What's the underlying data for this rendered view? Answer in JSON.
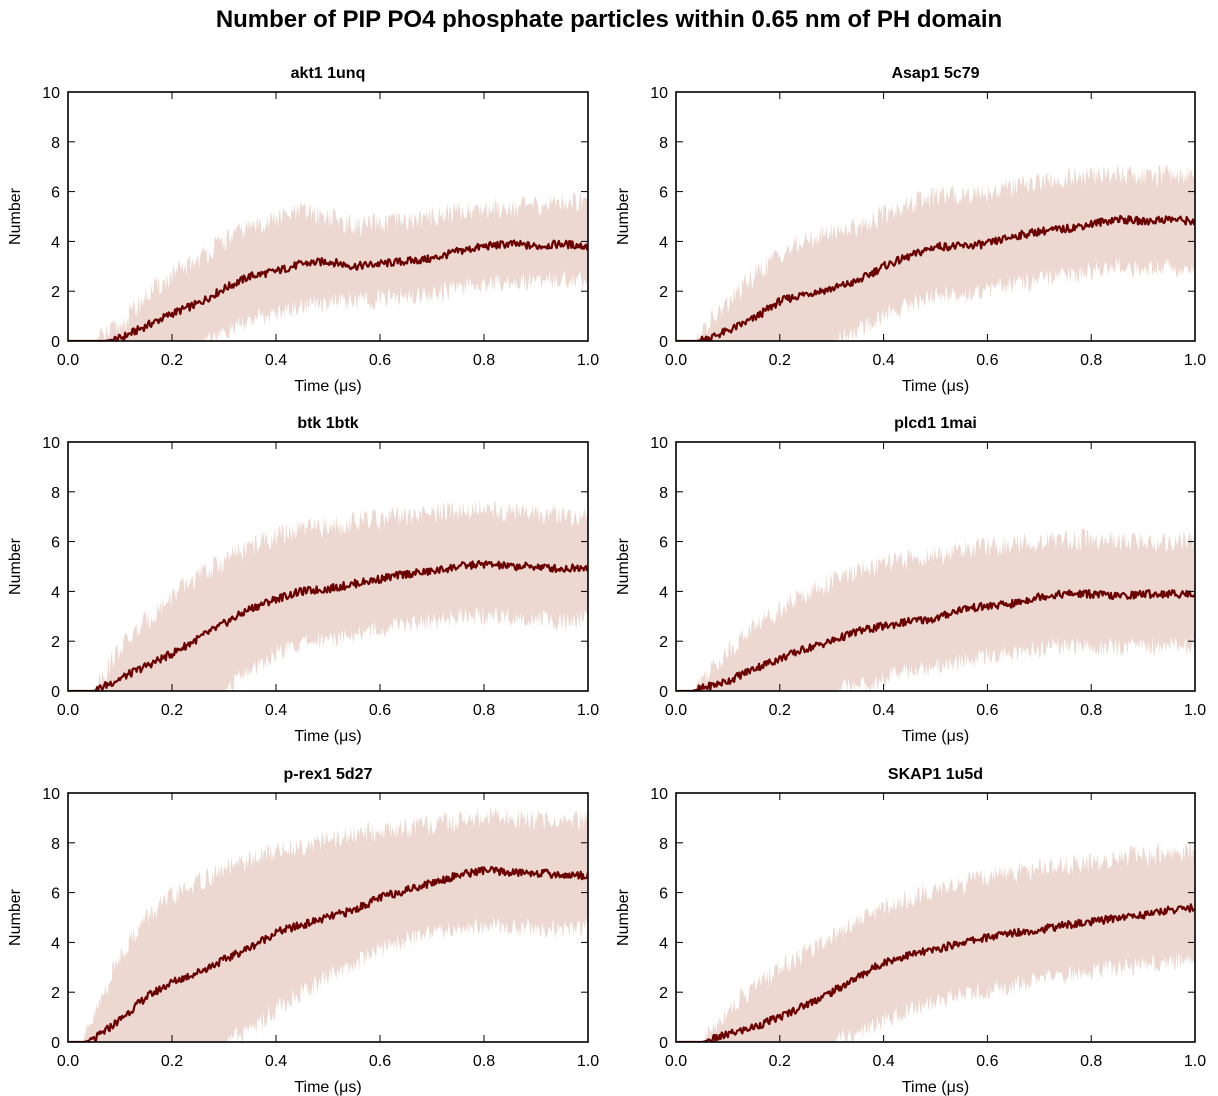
{
  "figure": {
    "title": "Number of PIP PO4 phosphate particles within 0.65 nm of PH domain",
    "colors": {
      "mean_line": "#6b0000",
      "band": "#ecd8d0",
      "axes": "#000000"
    }
  },
  "chart_data": [
    {
      "type": "line",
      "title": "akt1 1unq",
      "xlabel": "Time (μs)",
      "ylabel": "Number",
      "xlim": [
        0.0,
        1.0
      ],
      "ylim": [
        0,
        10
      ],
      "xticks": [
        "0.0",
        "0.2",
        "0.4",
        "0.6",
        "0.8",
        "1.0"
      ],
      "yticks": [
        "0",
        "2",
        "4",
        "6",
        "8",
        "10"
      ],
      "x": [
        0.0,
        0.05,
        0.07,
        0.1,
        0.15,
        0.2,
        0.25,
        0.3,
        0.35,
        0.4,
        0.45,
        0.5,
        0.55,
        0.6,
        0.65,
        0.7,
        0.75,
        0.8,
        0.85,
        0.9,
        0.95,
        1.0
      ],
      "series": [
        {
          "role": "mean",
          "values": [
            0,
            0,
            0,
            0.1,
            0.6,
            1.1,
            1.5,
            2.1,
            2.6,
            2.8,
            3.1,
            3.2,
            3.0,
            3.1,
            3.2,
            3.3,
            3.6,
            3.8,
            3.9,
            3.8,
            3.9,
            3.8
          ]
        },
        {
          "role": "upper",
          "values": [
            0,
            0,
            0.2,
            0.6,
            1.8,
            2.6,
            3.3,
            4.0,
            4.6,
            4.9,
            5.2,
            5.0,
            4.6,
            4.7,
            4.8,
            5.0,
            5.2,
            5.3,
            5.4,
            5.4,
            5.6,
            5.7
          ]
        },
        {
          "role": "lower",
          "values": [
            0,
            0,
            0,
            0,
            0,
            0,
            0,
            0.3,
            0.8,
            1.1,
            1.4,
            1.6,
            1.6,
            1.7,
            1.8,
            1.9,
            2.1,
            2.3,
            2.4,
            2.4,
            2.5,
            2.4
          ]
        }
      ]
    },
    {
      "type": "line",
      "title": "Asap1 5c79",
      "xlabel": "Time (μs)",
      "ylabel": "Number",
      "xlim": [
        0.0,
        1.0
      ],
      "ylim": [
        0,
        10
      ],
      "xticks": [
        "0.0",
        "0.2",
        "0.4",
        "0.6",
        "0.8",
        "1.0"
      ],
      "yticks": [
        "0",
        "2",
        "4",
        "6",
        "8",
        "10"
      ],
      "x": [
        0.0,
        0.04,
        0.06,
        0.1,
        0.15,
        0.2,
        0.25,
        0.3,
        0.35,
        0.4,
        0.45,
        0.5,
        0.55,
        0.6,
        0.65,
        0.7,
        0.75,
        0.8,
        0.85,
        0.9,
        0.95,
        1.0
      ],
      "series": [
        {
          "role": "mean",
          "values": [
            0,
            0,
            0.1,
            0.4,
            0.9,
            1.6,
            1.9,
            2.1,
            2.4,
            3.0,
            3.4,
            3.8,
            3.8,
            3.9,
            4.2,
            4.4,
            4.5,
            4.7,
            4.9,
            4.8,
            4.9,
            4.8
          ]
        },
        {
          "role": "upper",
          "values": [
            0,
            0,
            0.6,
            1.5,
            2.6,
            3.5,
            4.0,
            4.4,
            4.6,
            5.1,
            5.5,
            5.8,
            5.9,
            6.0,
            6.2,
            6.4,
            6.5,
            6.6,
            6.7,
            6.6,
            6.7,
            6.7
          ]
        },
        {
          "role": "lower",
          "values": [
            0,
            0,
            0,
            0,
            0,
            0,
            0,
            0,
            0.4,
            1.0,
            1.5,
            1.8,
            1.9,
            2.0,
            2.3,
            2.4,
            2.6,
            2.8,
            3.0,
            2.9,
            3.0,
            2.9
          ]
        }
      ]
    },
    {
      "type": "line",
      "title": "btk 1btk",
      "xlabel": "Time (μs)",
      "ylabel": "Number",
      "xlim": [
        0.0,
        1.0
      ],
      "ylim": [
        0,
        10
      ],
      "xticks": [
        "0.0",
        "0.2",
        "0.4",
        "0.6",
        "0.8",
        "1.0"
      ],
      "yticks": [
        "0",
        "2",
        "4",
        "6",
        "8",
        "10"
      ],
      "x": [
        0.0,
        0.05,
        0.06,
        0.1,
        0.15,
        0.2,
        0.25,
        0.3,
        0.35,
        0.4,
        0.45,
        0.5,
        0.55,
        0.6,
        0.65,
        0.7,
        0.75,
        0.8,
        0.85,
        0.9,
        0.95,
        1.0
      ],
      "series": [
        {
          "role": "mean",
          "values": [
            0,
            0,
            0.1,
            0.5,
            1.0,
            1.5,
            2.1,
            2.7,
            3.3,
            3.7,
            4.0,
            4.1,
            4.3,
            4.5,
            4.7,
            4.8,
            5.0,
            5.1,
            5.0,
            5.0,
            4.9,
            5.0
          ]
        },
        {
          "role": "upper",
          "values": [
            0,
            0,
            0.4,
            1.7,
            2.8,
            3.8,
            4.6,
            5.2,
            5.8,
            6.2,
            6.5,
            6.6,
            6.8,
            6.9,
            7.0,
            7.1,
            7.3,
            7.3,
            7.2,
            7.1,
            7.0,
            7.0
          ]
        },
        {
          "role": "lower",
          "values": [
            0,
            0,
            0,
            0,
            0,
            0,
            0,
            0,
            0.8,
            1.5,
            1.9,
            2.1,
            2.3,
            2.5,
            2.7,
            2.8,
            3.0,
            3.0,
            3.0,
            2.9,
            2.8,
            2.9
          ]
        }
      ]
    },
    {
      "type": "line",
      "title": "plcd1 1mai",
      "xlabel": "Time (μs)",
      "ylabel": "Number",
      "xlim": [
        0.0,
        1.0
      ],
      "ylim": [
        0,
        10
      ],
      "xticks": [
        "0.0",
        "0.2",
        "0.4",
        "0.6",
        "0.8",
        "1.0"
      ],
      "yticks": [
        "0",
        "2",
        "4",
        "6",
        "8",
        "10"
      ],
      "x": [
        0.0,
        0.03,
        0.05,
        0.1,
        0.15,
        0.2,
        0.25,
        0.3,
        0.35,
        0.4,
        0.45,
        0.5,
        0.55,
        0.6,
        0.65,
        0.7,
        0.75,
        0.8,
        0.85,
        0.9,
        0.95,
        1.0
      ],
      "series": [
        {
          "role": "mean",
          "values": [
            0,
            0,
            0.1,
            0.4,
            0.9,
            1.3,
            1.7,
            2.0,
            2.4,
            2.6,
            2.8,
            2.9,
            3.3,
            3.4,
            3.5,
            3.8,
            3.9,
            3.9,
            3.8,
            3.9,
            3.9,
            3.9
          ]
        },
        {
          "role": "upper",
          "values": [
            0,
            0,
            0.5,
            1.6,
            2.6,
            3.3,
            3.9,
            4.4,
            4.8,
            5.1,
            5.3,
            5.4,
            5.7,
            5.8,
            5.9,
            6.0,
            6.1,
            6.1,
            6.0,
            6.0,
            6.0,
            6.0
          ]
        },
        {
          "role": "lower",
          "values": [
            0,
            0,
            0,
            0,
            0,
            0,
            0,
            0,
            0.2,
            0.5,
            0.8,
            1.0,
            1.2,
            1.4,
            1.5,
            1.7,
            1.8,
            1.8,
            1.7,
            1.8,
            1.8,
            1.8
          ]
        }
      ]
    },
    {
      "type": "line",
      "title": "p-rex1 5d27",
      "xlabel": "Time (μs)",
      "ylabel": "Number",
      "xlim": [
        0.0,
        1.0
      ],
      "ylim": [
        0,
        10
      ],
      "xticks": [
        "0.0",
        "0.2",
        "0.4",
        "0.6",
        "0.8",
        "1.0"
      ],
      "yticks": [
        "0",
        "2",
        "4",
        "6",
        "8",
        "10"
      ],
      "x": [
        0.0,
        0.03,
        0.05,
        0.1,
        0.15,
        0.2,
        0.25,
        0.3,
        0.35,
        0.4,
        0.45,
        0.5,
        0.55,
        0.6,
        0.65,
        0.7,
        0.75,
        0.8,
        0.85,
        0.9,
        0.95,
        1.0
      ],
      "series": [
        {
          "role": "mean",
          "values": [
            0,
            0,
            0.1,
            0.9,
            1.8,
            2.4,
            2.8,
            3.3,
            3.8,
            4.4,
            4.7,
            5.0,
            5.3,
            5.8,
            6.1,
            6.4,
            6.7,
            6.9,
            6.8,
            6.8,
            6.7,
            6.7
          ]
        },
        {
          "role": "upper",
          "values": [
            0,
            0,
            1.0,
            3.5,
            5.0,
            5.8,
            6.4,
            6.9,
            7.3,
            7.7,
            7.9,
            8.1,
            8.3,
            8.5,
            8.6,
            8.7,
            8.9,
            9.0,
            9.0,
            8.9,
            8.9,
            8.9
          ]
        },
        {
          "role": "lower",
          "values": [
            0,
            0,
            0,
            0,
            0,
            0,
            0,
            0,
            0.5,
            1.3,
            2.0,
            2.6,
            3.1,
            3.7,
            4.1,
            4.4,
            4.6,
            4.7,
            4.6,
            4.6,
            4.5,
            4.6
          ]
        }
      ]
    },
    {
      "type": "line",
      "title": "SKAP1 1u5d",
      "xlabel": "Time (μs)",
      "ylabel": "Number",
      "xlim": [
        0.0,
        1.0
      ],
      "ylim": [
        0,
        10
      ],
      "xticks": [
        "0.0",
        "0.2",
        "0.4",
        "0.6",
        "0.8",
        "1.0"
      ],
      "yticks": [
        "0",
        "2",
        "4",
        "6",
        "8",
        "10"
      ],
      "x": [
        0.0,
        0.05,
        0.07,
        0.1,
        0.15,
        0.2,
        0.25,
        0.3,
        0.35,
        0.4,
        0.45,
        0.5,
        0.55,
        0.6,
        0.65,
        0.7,
        0.75,
        0.8,
        0.85,
        0.9,
        0.95,
        1.0
      ],
      "series": [
        {
          "role": "mean",
          "values": [
            0,
            0,
            0.1,
            0.3,
            0.6,
            1.0,
            1.5,
            2.0,
            2.6,
            3.2,
            3.5,
            3.7,
            4.0,
            4.2,
            4.4,
            4.5,
            4.7,
            4.8,
            5.0,
            5.1,
            5.3,
            5.4
          ]
        },
        {
          "role": "upper",
          "values": [
            0,
            0,
            0.5,
            1.3,
            2.2,
            3.0,
            3.6,
            4.3,
            4.9,
            5.4,
            5.8,
            6.1,
            6.3,
            6.6,
            6.8,
            7.0,
            7.1,
            7.2,
            7.4,
            7.5,
            7.6,
            7.7
          ]
        },
        {
          "role": "lower",
          "values": [
            0,
            0,
            0,
            0,
            0,
            0,
            0,
            0,
            0.3,
            0.9,
            1.3,
            1.6,
            1.9,
            2.1,
            2.3,
            2.5,
            2.7,
            2.8,
            3.0,
            3.1,
            3.2,
            3.3
          ]
        }
      ]
    }
  ]
}
